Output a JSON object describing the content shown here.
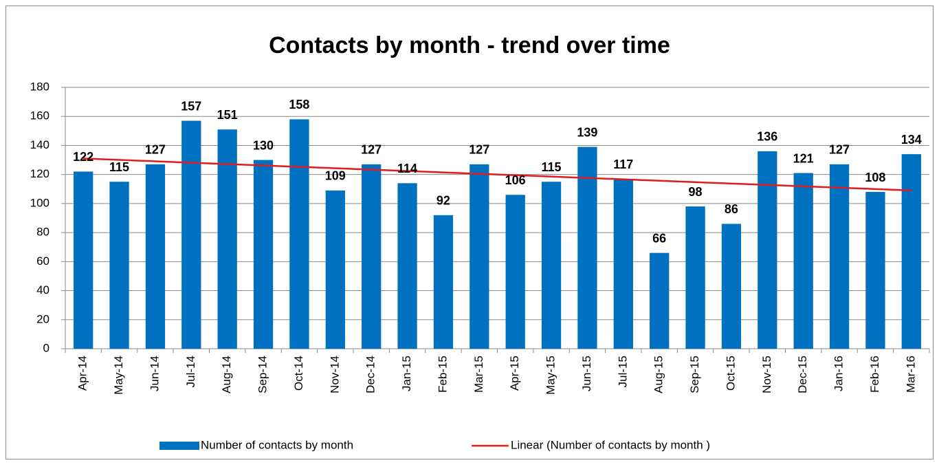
{
  "chart_data": {
    "type": "bar",
    "title": "Contacts by month - trend over time",
    "categories": [
      "Apr-14",
      "May-14",
      "Jun-14",
      "Jul-14",
      "Aug-14",
      "Sep-14",
      "Oct-14",
      "Nov-14",
      "Dec-14",
      "Jan-15",
      "Feb-15",
      "Mar-15",
      "Apr-15",
      "May-15",
      "Jun-15",
      "Jul-15",
      "Aug-15",
      "Sep-15",
      "Oct-15",
      "Nov-15",
      "Dec-15",
      "Jan-16",
      "Feb-16",
      "Mar-16"
    ],
    "series": [
      {
        "name": "Number of contacts by month",
        "color": "#0070c0",
        "values": [
          122,
          115,
          127,
          157,
          151,
          130,
          158,
          109,
          127,
          114,
          92,
          127,
          106,
          115,
          139,
          117,
          66,
          98,
          86,
          136,
          121,
          127,
          108,
          134
        ]
      }
    ],
    "trend": {
      "name": "Linear (Number of contacts by month )",
      "color": "#e31a1c",
      "values": [
        131,
        109
      ]
    },
    "ylim": [
      0,
      180
    ],
    "yticks": [
      0,
      20,
      40,
      60,
      80,
      100,
      120,
      140,
      160,
      180
    ],
    "grid": true
  }
}
